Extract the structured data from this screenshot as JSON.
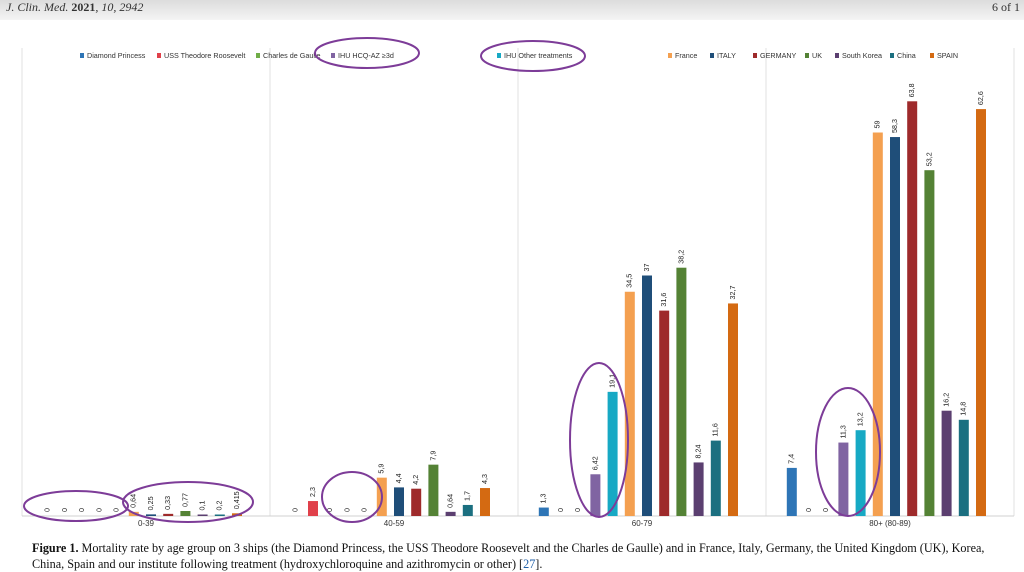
{
  "header": {
    "journal": "J. Clin. Med.",
    "year": "2021",
    "volume": "10",
    "article": "2942",
    "page": "6 of 1"
  },
  "caption": {
    "label": "Figure 1.",
    "text": "Mortality rate by age group on 3 ships (the Diamond Princess, the USS Theodore Roosevelt and the Charles de Gaulle) and in France, Italy, Germany, the United Kingdom (UK), Korea, China, Spain and our institute following treatment (hydroxychloroquine and azithromycin or other) [",
    "ref": "27",
    "end": "]."
  },
  "chart_data": {
    "type": "bar",
    "categories": [
      "0-39",
      "40-59",
      "60-79",
      "80+ (80-89)"
    ],
    "ylim": [
      0,
      68
    ],
    "grid": false,
    "legend_position": "top",
    "series": [
      {
        "name": "Diamond Princess",
        "color": "#2e75b6",
        "values": [
          0,
          0,
          1.3,
          7.4
        ],
        "labels": [
          "0",
          "0",
          "1,3",
          "7,4"
        ]
      },
      {
        "name": "USS Theodore Roosevelt",
        "color": "#e0404a",
        "values": [
          0,
          2.3,
          0,
          0
        ],
        "labels": [
          "0",
          "2,3",
          "0",
          "0"
        ]
      },
      {
        "name": "Charles de Gaulle",
        "color": "#70ad47",
        "values": [
          0,
          0,
          0,
          0
        ],
        "labels": [
          "0",
          "0",
          "0",
          "0"
        ]
      },
      {
        "name": "IHU HCQ-AZ ≥3d",
        "color": "#8064a2",
        "values": [
          0,
          0,
          6.42,
          11.3
        ],
        "labels": [
          "0",
          "0",
          "6,42",
          "11,3"
        ]
      },
      {
        "name": "IHU Other treatments",
        "color": "#17a9c4",
        "values": [
          0,
          0,
          19.1,
          13.2
        ],
        "labels": [
          "0",
          "0",
          "19,1",
          "13,2"
        ]
      },
      {
        "name": "France",
        "color": "#f4a050",
        "values": [
          0.64,
          5.9,
          34.5,
          59
        ],
        "labels": [
          "0,64",
          "5,9",
          "34,5",
          "59"
        ]
      },
      {
        "name": "ITALY",
        "color": "#1f4e79",
        "values": [
          0.25,
          4.4,
          37,
          58.3
        ],
        "labels": [
          "0,25",
          "4,4",
          "37",
          "58,3"
        ]
      },
      {
        "name": "GERMANY",
        "color": "#9e2a2b",
        "values": [
          0.33,
          4.2,
          31.6,
          63.8
        ],
        "labels": [
          "0,33",
          "4,2",
          "31,6",
          "63,8"
        ]
      },
      {
        "name": "UK",
        "color": "#548235",
        "values": [
          0.77,
          7.9,
          38.2,
          53.2
        ],
        "labels": [
          "0,77",
          "7,9",
          "38,2",
          "53,2"
        ]
      },
      {
        "name": "South Korea",
        "color": "#5b3f70",
        "values": [
          0.1,
          0.64,
          8.24,
          16.2
        ],
        "labels": [
          "0,1",
          "0,64",
          "8,24",
          "16,2"
        ]
      },
      {
        "name": "China",
        "color": "#1b6f80",
        "values": [
          0.2,
          1.7,
          11.6,
          14.8
        ],
        "labels": [
          "0,2",
          "1,7",
          "11,6",
          "14,8"
        ]
      },
      {
        "name": "SPAIN",
        "color": "#d46a12",
        "values": [
          0.415,
          4.3,
          32.7,
          62.6
        ],
        "labels": [
          "0,415",
          "4,3",
          "32,7",
          "62,6"
        ]
      }
    ]
  }
}
